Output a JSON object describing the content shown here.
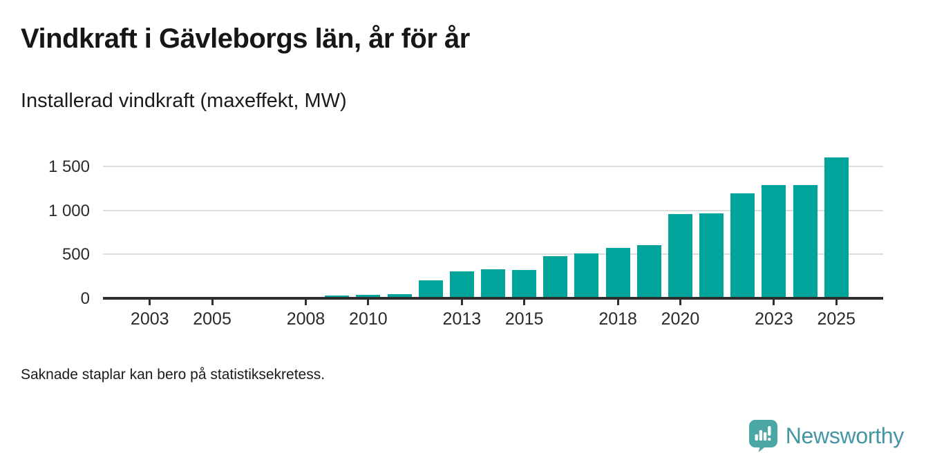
{
  "header": {
    "title": "Vindkraft i Gävleborgs län, år för år",
    "subtitle": "Installerad vindkraft (maxeffekt, MW)"
  },
  "footer": {
    "note": "Saknade staplar kan bero på statistiksekretess.",
    "brand_name": "Newsworthy",
    "brand_icon": "bar-chart-speech-bubble-icon"
  },
  "colors": {
    "bar": "#00a49a",
    "axis": "#2e2e2e",
    "grid": "#dcdcdc",
    "text": "#2b2b2b",
    "logo_icon": "#4ba7a3",
    "logo_text": "#4596a3"
  },
  "chart_data": {
    "type": "bar",
    "title": "Vindkraft i Gävleborgs län, år för år",
    "ylabel": "Installerad vindkraft (maxeffekt, MW)",
    "unit": "MW",
    "x_domain": [
      2002,
      2026
    ],
    "points": [
      {
        "year": 2009,
        "value": 30
      },
      {
        "year": 2010,
        "value": 35
      },
      {
        "year": 2011,
        "value": 40
      },
      {
        "year": 2012,
        "value": 200
      },
      {
        "year": 2013,
        "value": 300
      },
      {
        "year": 2014,
        "value": 325
      },
      {
        "year": 2015,
        "value": 320
      },
      {
        "year": 2016,
        "value": 480
      },
      {
        "year": 2017,
        "value": 505
      },
      {
        "year": 2018,
        "value": 570
      },
      {
        "year": 2019,
        "value": 600
      },
      {
        "year": 2020,
        "value": 955
      },
      {
        "year": 2021,
        "value": 965
      },
      {
        "year": 2022,
        "value": 1195
      },
      {
        "year": 2023,
        "value": 1285
      },
      {
        "year": 2024,
        "value": 1285
      },
      {
        "year": 2025,
        "value": 1600
      }
    ],
    "missing_years": [
      2002,
      2003,
      2004,
      2005,
      2006,
      2007,
      2008
    ],
    "x_tick_labels": [
      "2003",
      "2005",
      "2008",
      "2010",
      "2013",
      "2015",
      "2018",
      "2020",
      "2023",
      "2025"
    ],
    "y_ticks": [
      0,
      500,
      1000,
      1500
    ],
    "y_tick_labels": [
      "0",
      "500",
      "1 000",
      "1 500"
    ],
    "ylim": [
      0,
      1665
    ],
    "grid": true,
    "legend": false,
    "note": "Saknade staplar kan bero på statistiksekretess."
  }
}
